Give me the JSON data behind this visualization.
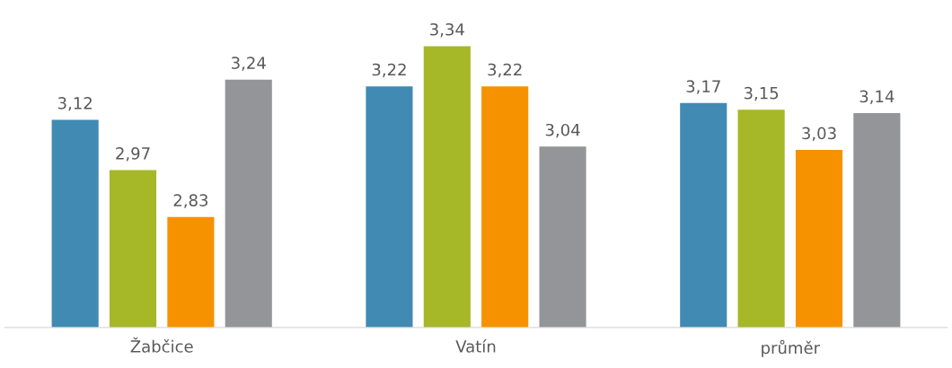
{
  "chart_data": {
    "type": "bar",
    "categories": [
      "Žabčice",
      "Vatín",
      "průměr"
    ],
    "series": [
      {
        "color": "#418ab3",
        "values": [
          3.12,
          3.22,
          3.17
        ],
        "value_labels": [
          "3,12",
          "3,22",
          "3,17"
        ]
      },
      {
        "color": "#a6b727",
        "values": [
          2.97,
          3.34,
          3.15
        ],
        "value_labels": [
          "2,97",
          "3,34",
          "3,15"
        ]
      },
      {
        "color": "#f69200",
        "values": [
          2.83,
          3.22,
          3.03
        ],
        "value_labels": [
          "2,83",
          "3,22",
          "3,03"
        ]
      },
      {
        "color": "#939598",
        "values": [
          3.24,
          3.04,
          3.14
        ],
        "value_labels": [
          "3,24",
          "3,04",
          "3,14"
        ]
      }
    ],
    "tick_labels": "x",
    "grid": false,
    "legend": false
  }
}
